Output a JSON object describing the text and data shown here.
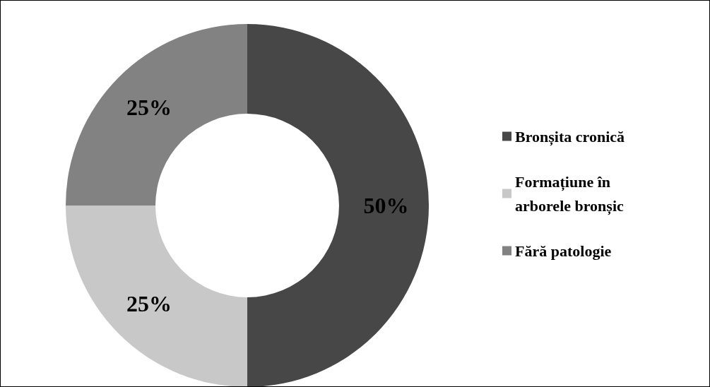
{
  "chart_data": {
    "type": "donut",
    "categories": [
      "Bronșita cronică",
      "Formațiune în arborele bronșic",
      "Fără patologie"
    ],
    "values": [
      50,
      25,
      25
    ],
    "colors": [
      "#474747",
      "#c8c8c8",
      "#828282"
    ],
    "value_labels": [
      "50%",
      "25%",
      "25%"
    ],
    "legend": "right"
  }
}
